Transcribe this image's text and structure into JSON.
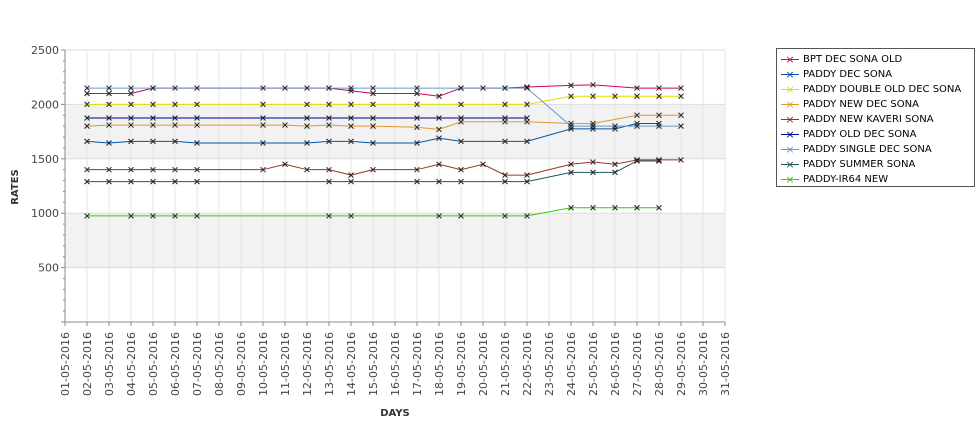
{
  "chart_data": {
    "type": "line",
    "xlabel": "DAYS",
    "ylabel": "RATES",
    "ylim": [
      0,
      2500
    ],
    "yticks": [
      500,
      1000,
      1500,
      2000,
      2500
    ],
    "x": [
      "01-05-2016",
      "02-05-2016",
      "03-05-2016",
      "04-05-2016",
      "05-05-2016",
      "06-05-2016",
      "07-05-2016",
      "08-05-2016",
      "09-05-2016",
      "10-05-2016",
      "11-05-2016",
      "12-05-2016",
      "13-05-2016",
      "14-05-2016",
      "15-05-2016",
      "16-05-2016",
      "17-05-2016",
      "18-05-2016",
      "19-05-2016",
      "20-05-2016",
      "21-05-2016",
      "22-05-2016",
      "23-05-2016",
      "24-05-2016",
      "25-05-2016",
      "26-05-2016",
      "27-05-2016",
      "28-05-2016",
      "29-05-2016",
      "30-05-2016",
      "31-05-2016"
    ],
    "grid": true,
    "legend_position": "right",
    "series": [
      {
        "name": "BPT DEC SONA OLD",
        "color": "#cc0066",
        "points": [
          [
            1,
            2100
          ],
          [
            2,
            2100
          ],
          [
            3,
            2100
          ],
          [
            4,
            2150
          ],
          [
            12,
            2150
          ],
          [
            13,
            2125
          ],
          [
            14,
            2100
          ],
          [
            16,
            2100
          ],
          [
            17,
            2075
          ],
          [
            18,
            2150
          ],
          [
            20,
            2150
          ],
          [
            21,
            2160
          ],
          [
            23,
            2175
          ],
          [
            24,
            2180
          ],
          [
            26,
            2150
          ],
          [
            27,
            2150
          ],
          [
            28,
            2150
          ]
        ]
      },
      {
        "name": "PADDY DEC SONA",
        "color": "#0055aa",
        "points": [
          [
            1,
            1660
          ],
          [
            2,
            1645
          ],
          [
            3,
            1660
          ],
          [
            4,
            1660
          ],
          [
            5,
            1660
          ],
          [
            6,
            1645
          ],
          [
            9,
            1645
          ],
          [
            11,
            1645
          ],
          [
            12,
            1660
          ],
          [
            13,
            1660
          ],
          [
            14,
            1645
          ],
          [
            16,
            1645
          ],
          [
            17,
            1690
          ],
          [
            18,
            1660
          ],
          [
            20,
            1660
          ],
          [
            21,
            1660
          ],
          [
            23,
            1775
          ],
          [
            24,
            1775
          ],
          [
            25,
            1775
          ],
          [
            26,
            1825
          ],
          [
            27,
            1825
          ]
        ]
      },
      {
        "name": "PADDY DOUBLE OLD DEC SONA",
        "color": "#dddd00",
        "points": [
          [
            1,
            2000
          ],
          [
            2,
            2000
          ],
          [
            3,
            2000
          ],
          [
            4,
            2000
          ],
          [
            5,
            2000
          ],
          [
            6,
            2000
          ],
          [
            9,
            2000
          ],
          [
            11,
            2000
          ],
          [
            12,
            2000
          ],
          [
            13,
            2000
          ],
          [
            14,
            2000
          ],
          [
            16,
            2000
          ],
          [
            18,
            2000
          ],
          [
            20,
            2000
          ],
          [
            21,
            2000
          ],
          [
            23,
            2075
          ],
          [
            24,
            2075
          ],
          [
            25,
            2075
          ],
          [
            26,
            2075
          ],
          [
            27,
            2075
          ],
          [
            28,
            2075
          ]
        ]
      },
      {
        "name": "PADDY NEW DEC SONA",
        "color": "#dd9933",
        "points": [
          [
            1,
            1800
          ],
          [
            2,
            1810
          ],
          [
            3,
            1810
          ],
          [
            4,
            1810
          ],
          [
            5,
            1810
          ],
          [
            6,
            1810
          ],
          [
            9,
            1810
          ],
          [
            10,
            1810
          ],
          [
            11,
            1800
          ],
          [
            12,
            1810
          ],
          [
            13,
            1800
          ],
          [
            14,
            1800
          ],
          [
            16,
            1790
          ],
          [
            17,
            1770
          ],
          [
            18,
            1840
          ],
          [
            20,
            1840
          ],
          [
            21,
            1840
          ],
          [
            23,
            1825
          ],
          [
            24,
            1825
          ],
          [
            26,
            1900
          ],
          [
            27,
            1900
          ],
          [
            28,
            1900
          ]
        ]
      },
      {
        "name": "PADDY NEW KAVERI SONA",
        "color": "#993322",
        "points": [
          [
            1,
            1400
          ],
          [
            2,
            1400
          ],
          [
            3,
            1400
          ],
          [
            4,
            1400
          ],
          [
            5,
            1400
          ],
          [
            6,
            1400
          ],
          [
            9,
            1400
          ],
          [
            10,
            1450
          ],
          [
            11,
            1400
          ],
          [
            12,
            1400
          ],
          [
            13,
            1350
          ],
          [
            14,
            1400
          ],
          [
            16,
            1400
          ],
          [
            17,
            1450
          ],
          [
            18,
            1400
          ],
          [
            19,
            1450
          ],
          [
            20,
            1350
          ],
          [
            21,
            1350
          ],
          [
            23,
            1450
          ],
          [
            24,
            1470
          ],
          [
            25,
            1450
          ],
          [
            26,
            1490
          ],
          [
            27,
            1490
          ],
          [
            28,
            1490
          ]
        ]
      },
      {
        "name": "PADDY OLD DEC SONA",
        "color": "#000088",
        "points": [
          [
            1,
            1875
          ],
          [
            2,
            1875
          ],
          [
            3,
            1875
          ],
          [
            4,
            1875
          ],
          [
            5,
            1875
          ],
          [
            6,
            1875
          ],
          [
            9,
            1875
          ],
          [
            11,
            1875
          ],
          [
            12,
            1875
          ],
          [
            13,
            1875
          ],
          [
            14,
            1875
          ],
          [
            16,
            1875
          ],
          [
            17,
            1875
          ],
          [
            18,
            1875
          ],
          [
            20,
            1875
          ],
          [
            21,
            1875
          ]
        ]
      },
      {
        "name": "PADDY SINGLE DEC SONA",
        "color": "#6699cc",
        "points": [
          [
            1,
            2150
          ],
          [
            2,
            2150
          ],
          [
            3,
            2150
          ],
          [
            4,
            2150
          ],
          [
            5,
            2150
          ],
          [
            6,
            2150
          ],
          [
            9,
            2150
          ],
          [
            10,
            2150
          ],
          [
            11,
            2150
          ],
          [
            12,
            2150
          ],
          [
            13,
            2150
          ],
          [
            14,
            2150
          ],
          [
            16,
            2150
          ],
          [
            18,
            2150
          ],
          [
            19,
            2150
          ],
          [
            20,
            2150
          ],
          [
            21,
            2150
          ],
          [
            23,
            1800
          ],
          [
            24,
            1800
          ],
          [
            25,
            1800
          ],
          [
            26,
            1800
          ],
          [
            27,
            1800
          ],
          [
            28,
            1800
          ]
        ]
      },
      {
        "name": "PADDY SUMMER SONA",
        "color": "#225555",
        "points": [
          [
            1,
            1290
          ],
          [
            2,
            1290
          ],
          [
            3,
            1290
          ],
          [
            4,
            1290
          ],
          [
            5,
            1290
          ],
          [
            6,
            1290
          ],
          [
            12,
            1290
          ],
          [
            13,
            1290
          ],
          [
            16,
            1290
          ],
          [
            17,
            1290
          ],
          [
            18,
            1290
          ],
          [
            20,
            1290
          ],
          [
            21,
            1290
          ],
          [
            23,
            1375
          ],
          [
            24,
            1375
          ],
          [
            25,
            1375
          ],
          [
            26,
            1480
          ],
          [
            27,
            1480
          ]
        ]
      },
      {
        "name": "PADDY-IR64 NEW",
        "color": "#33cc00",
        "points": [
          [
            1,
            975
          ],
          [
            3,
            975
          ],
          [
            4,
            975
          ],
          [
            5,
            975
          ],
          [
            6,
            975
          ],
          [
            12,
            975
          ],
          [
            13,
            975
          ],
          [
            17,
            975
          ],
          [
            18,
            975
          ],
          [
            20,
            975
          ],
          [
            21,
            975
          ],
          [
            23,
            1050
          ],
          [
            24,
            1050
          ],
          [
            25,
            1050
          ],
          [
            26,
            1050
          ],
          [
            27,
            1050
          ]
        ]
      }
    ]
  }
}
